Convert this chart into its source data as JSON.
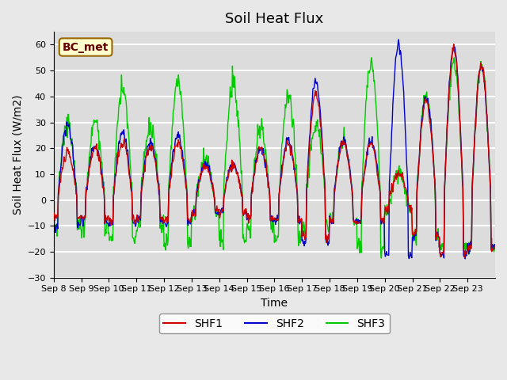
{
  "title": "Soil Heat Flux",
  "ylabel": "Soil Heat Flux (W/m2)",
  "xlabel": "Time",
  "ylim": [
    -30,
    65
  ],
  "yticks": [
    -30,
    -20,
    -10,
    0,
    10,
    20,
    30,
    40,
    50,
    60
  ],
  "xtick_labels": [
    "Sep 8",
    "Sep 9",
    "Sep 10",
    "Sep 11",
    "Sep 12",
    "Sep 13",
    "Sep 14",
    "Sep 15",
    "Sep 16",
    "Sep 17",
    "Sep 18",
    "Sep 19",
    "Sep 20",
    "Sep 21",
    "Sep 22",
    "Sep 23"
  ],
  "shf1_color": "#cc0000",
  "shf2_color": "#0000cc",
  "shf3_color": "#00cc00",
  "legend_label": "BC_met",
  "background_color": "#dcdcdc",
  "grid_color": "#ffffff",
  "title_fontsize": 13,
  "axis_fontsize": 10,
  "tick_fontsize": 8,
  "legend_fontsize": 10,
  "n_days": 16,
  "pts_per_day": 48
}
